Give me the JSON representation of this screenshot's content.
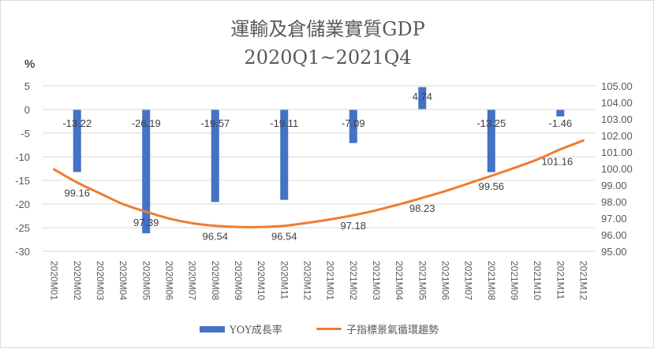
{
  "chart_data": {
    "type": "bar",
    "title": "運輸及倉儲業實質GDP",
    "subtitle": "2020Q1~2021Q4",
    "y_left_unit": "%",
    "categories": [
      "2020M01",
      "2020M02",
      "2020M03",
      "2020M04",
      "2020M05",
      "2020M06",
      "2020M07",
      "2020M08",
      "2020M09",
      "2020M10",
      "2020M11",
      "2020M12",
      "2021M01",
      "2021M02",
      "2021M03",
      "2021M04",
      "2021M05",
      "2021M06",
      "2021M07",
      "2021M08",
      "2021M09",
      "2021M10",
      "2021M11",
      "2021M12"
    ],
    "y_left_ticks": [
      "5",
      "0",
      "-5",
      "-10",
      "-15",
      "-20",
      "-25",
      "-30"
    ],
    "y_right_ticks": [
      "105.00",
      "104.00",
      "103.00",
      "102.00",
      "101.00",
      "100.00",
      "99.00",
      "98.00",
      "97.00",
      "96.00",
      "95.00"
    ],
    "ylim_left": [
      -30,
      5
    ],
    "ylim_right": [
      95,
      105
    ],
    "grid": true,
    "legend_position": "bottom",
    "series": [
      {
        "name": "YOY成長率",
        "axis": "left",
        "type": "bar",
        "color": "#4472c4",
        "values": [
          null,
          -13.22,
          null,
          null,
          -26.19,
          null,
          null,
          -19.57,
          null,
          null,
          -19.11,
          null,
          null,
          -7.09,
          null,
          null,
          4.74,
          null,
          null,
          -13.25,
          null,
          null,
          -1.46,
          null
        ],
        "labels": [
          null,
          "-13.22",
          null,
          null,
          "-26.19",
          null,
          null,
          "-19.57",
          null,
          null,
          "-19.11",
          null,
          null,
          "-7.09",
          null,
          null,
          "4.74",
          null,
          null,
          "-13.25",
          null,
          null,
          "-1.46",
          null
        ]
      },
      {
        "name": "子指標景氣循環趨勢",
        "axis": "right",
        "type": "line",
        "color": "#ed7d31",
        "values": [
          99.95,
          99.16,
          98.5,
          97.85,
          97.39,
          96.98,
          96.7,
          96.54,
          96.47,
          96.47,
          96.54,
          96.72,
          96.93,
          97.18,
          97.48,
          97.84,
          98.23,
          98.64,
          99.1,
          99.56,
          100.04,
          100.55,
          101.16,
          101.7
        ],
        "labels": [
          null,
          "99.16",
          null,
          null,
          "97.39",
          null,
          null,
          "96.54",
          null,
          null,
          "96.54",
          null,
          null,
          "97.18",
          null,
          null,
          "98.23",
          null,
          null,
          "99.56",
          null,
          null,
          "101.16",
          null
        ]
      }
    ]
  }
}
